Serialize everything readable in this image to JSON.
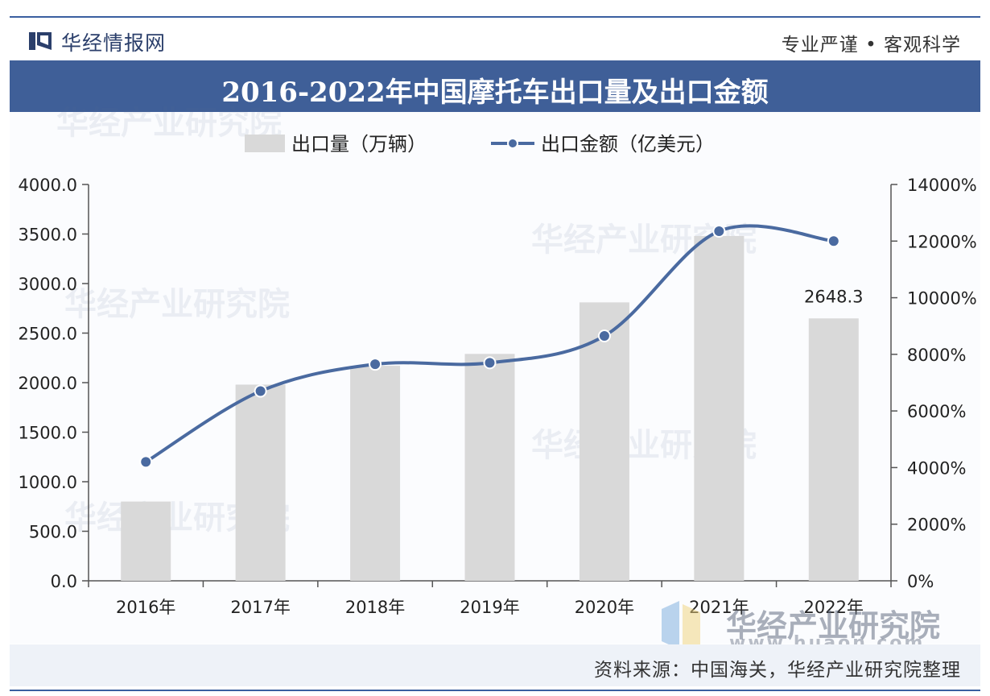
{
  "brand": {
    "name": "华经情报网",
    "slogan": "专业严谨 • 客观科学"
  },
  "title": "2016-2022年中国摩托车出口量及出口金额",
  "source": "资料来源：中国海关，华经产业研究院整理",
  "watermark": {
    "text": "华经产业研究院",
    "url": "www.huaon.com"
  },
  "colors": {
    "bar": "#d9d9d9",
    "line": "#4a6aa0",
    "title_bg": "#3f5f98",
    "axis": "#555555"
  },
  "chart_data": {
    "type": "bar",
    "categories": [
      "2016年",
      "2017年",
      "2018年",
      "2019年",
      "2020年",
      "2021年",
      "2022年"
    ],
    "series": [
      {
        "name": "出口量（万辆）",
        "type": "bar",
        "axis": "left",
        "values": [
          800,
          1980,
          2170,
          2290,
          2810,
          3480,
          2648.3
        ]
      },
      {
        "name": "出口金额（亿美元）",
        "type": "line",
        "axis": "right",
        "values": [
          4200,
          6700,
          7650,
          7700,
          8650,
          12350,
          12000
        ]
      }
    ],
    "data_labels": [
      {
        "series": 0,
        "index": 6,
        "text": "2648.3"
      }
    ],
    "yleft": {
      "min": 0,
      "max": 4000,
      "ticks": [
        "0.0",
        "500.0",
        "1000.0",
        "1500.0",
        "2000.0",
        "2500.0",
        "3000.0",
        "3500.0",
        "4000.0"
      ]
    },
    "yright": {
      "min": 0,
      "max": 14000,
      "ticks": [
        "0%",
        "2000%",
        "4000%",
        "6000%",
        "8000%",
        "10000%",
        "12000%",
        "14000%"
      ]
    },
    "legend": "top-center",
    "grid": false
  }
}
